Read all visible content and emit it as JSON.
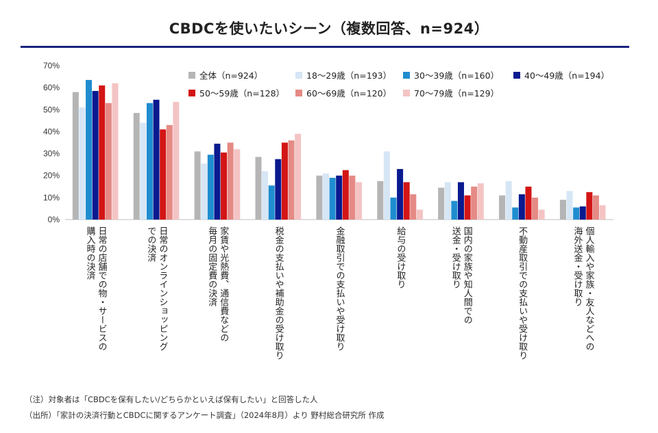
{
  "title": "CBDCを使いたいシーン（複数回答、n=924）",
  "notes": {
    "note": "（注）対象者は「CBDCを保有したい/どちらかといえば保有したい」と回答した人",
    "source": "（出所）「家計の決済行動とCBDCに関するアンケート調査」（2024年8月）より 野村総合研究所 作成"
  },
  "chart_data": {
    "type": "bar",
    "title": "CBDCを使いたいシーン（複数回答、n=924）",
    "ylabel": "",
    "xlabel": "",
    "ylim": [
      0,
      70
    ],
    "yticks": [
      "0%",
      "10%",
      "20%",
      "30%",
      "40%",
      "50%",
      "60%",
      "70%"
    ],
    "grid": false,
    "legend_position": "top-right",
    "categories": [
      [
        "日常の店舗での物・サービスの",
        "購入時の決済"
      ],
      [
        "日常のオンラインショッピング",
        "での決済"
      ],
      [
        "家賃や光熱費、通信費などの",
        "毎月の固定費の決済"
      ],
      [
        "税金の支払いや補助金の受け取り"
      ],
      [
        "金融取引での支払いや受け取り"
      ],
      [
        "給与の受け取り"
      ],
      [
        "国内の家族や知人間での",
        "送金・受け取り"
      ],
      [
        "不動産取引での支払いや受け取り"
      ],
      [
        "個人輸入や家族・友人などへの",
        "海外送金・受け取り"
      ]
    ],
    "series": [
      {
        "name": "全体（n=924）",
        "color": "#b5b5b5",
        "values": [
          58.0,
          48.5,
          31.0,
          28.5,
          20.0,
          17.5,
          14.5,
          11.0,
          9.0
        ]
      },
      {
        "name": "18～29歳（n=193）",
        "color": "#d6e6f5",
        "values": [
          51.0,
          44.0,
          25.5,
          22.0,
          21.0,
          31.0,
          17.0,
          17.5,
          13.0
        ]
      },
      {
        "name": "30～39歳（n=160）",
        "color": "#1f8dd0",
        "values": [
          63.5,
          53.0,
          29.5,
          15.5,
          19.0,
          10.0,
          8.5,
          5.5,
          5.5
        ]
      },
      {
        "name": "40～49歳（n=194）",
        "color": "#0a1a8f",
        "values": [
          58.5,
          54.5,
          34.5,
          27.5,
          20.0,
          23.0,
          17.0,
          11.5,
          6.0
        ]
      },
      {
        "name": "50～59歳（n=128）",
        "color": "#d31515",
        "values": [
          61.0,
          41.0,
          30.5,
          35.0,
          22.5,
          17.0,
          11.0,
          15.0,
          12.5
        ]
      },
      {
        "name": "60～69歳（n=120）",
        "color": "#e58a85",
        "values": [
          53.0,
          43.0,
          35.0,
          36.0,
          20.0,
          11.5,
          15.0,
          10.0,
          11.0
        ]
      },
      {
        "name": "70～79歳（n=129）",
        "color": "#f4c4c4",
        "values": [
          62.0,
          53.5,
          32.0,
          39.0,
          17.0,
          4.5,
          16.5,
          4.5,
          6.5
        ]
      }
    ]
  }
}
